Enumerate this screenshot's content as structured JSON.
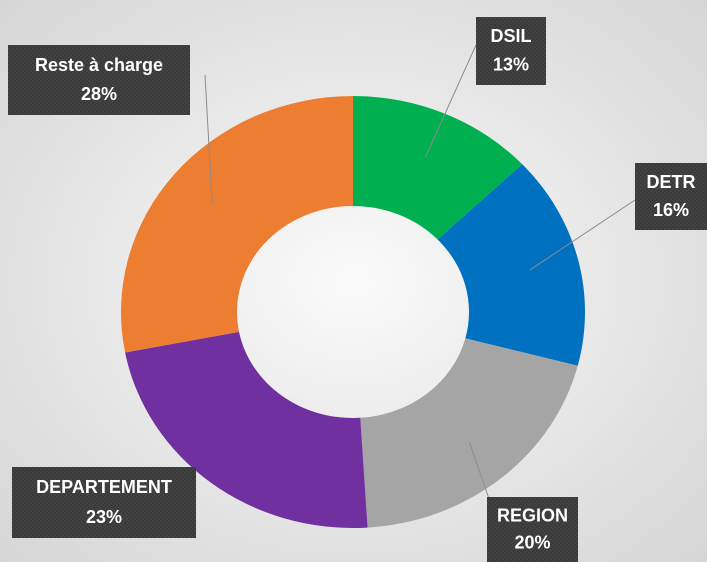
{
  "chart_data": {
    "type": "donut",
    "categories": [
      "DSIL",
      "DETR",
      "REGION",
      "DEPARTEMENT",
      "Reste à charge"
    ],
    "values": [
      13,
      16,
      20,
      23,
      28
    ],
    "value_labels": [
      "13%",
      "16%",
      "20%",
      "23%",
      "28%"
    ],
    "colors": [
      "#00b050",
      "#0070c0",
      "#a5a5a5",
      "#7030a0",
      "#ed7d31"
    ]
  }
}
